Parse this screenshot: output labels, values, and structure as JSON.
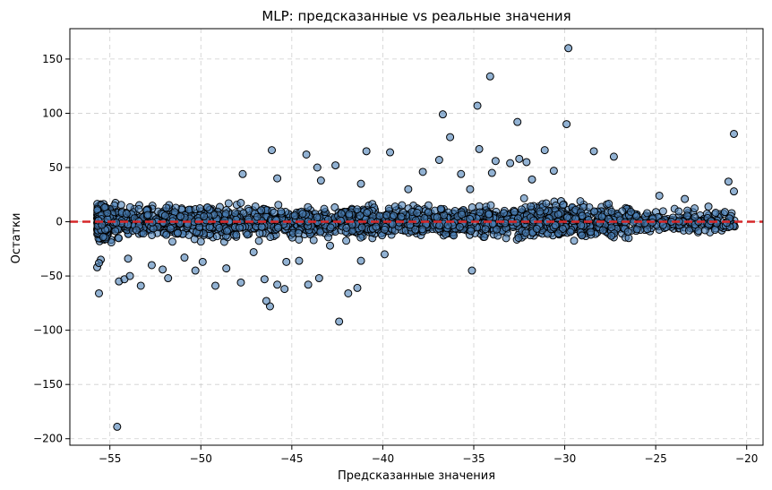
{
  "chart_data": {
    "type": "scatter",
    "title": "MLP: предсказанные vs реальные значения",
    "xlabel": "Предсказанные значения",
    "ylabel": "Остатки",
    "xlim": [
      -57.2,
      -19.1
    ],
    "ylim": [
      -206,
      178
    ],
    "xticks": [
      -55,
      -50,
      -45,
      -40,
      -35,
      -30,
      -25,
      -20
    ],
    "yticks": [
      -200,
      -150,
      -100,
      -50,
      0,
      50,
      100,
      150
    ],
    "xtick_labels": [
      "−55",
      "−50",
      "−45",
      "−40",
      "−35",
      "−30",
      "−25",
      "−20"
    ],
    "ytick_labels": [
      "−200",
      "−150",
      "−100",
      "−50",
      "0",
      "50",
      "100",
      "150"
    ],
    "grid": true,
    "reference_line": {
      "y": 0,
      "color": "#d62728",
      "style": "dashed"
    },
    "colors": {
      "point_fill": "#4a7fb5",
      "point_edge": "#000000"
    },
    "outliers": [
      {
        "x": -29.8,
        "y": 160
      },
      {
        "x": -34.1,
        "y": 134
      },
      {
        "x": -34.8,
        "y": 107
      },
      {
        "x": -36.7,
        "y": 99
      },
      {
        "x": -32.6,
        "y": 92
      },
      {
        "x": -29.9,
        "y": 90
      },
      {
        "x": -20.7,
        "y": 81
      },
      {
        "x": -36.3,
        "y": 78
      },
      {
        "x": -31.1,
        "y": 66
      },
      {
        "x": -34.7,
        "y": 67
      },
      {
        "x": -40.9,
        "y": 65
      },
      {
        "x": -46.1,
        "y": 66
      },
      {
        "x": -28.4,
        "y": 65
      },
      {
        "x": -39.6,
        "y": 64
      },
      {
        "x": -44.2,
        "y": 62
      },
      {
        "x": -27.3,
        "y": 60
      },
      {
        "x": -32.5,
        "y": 58
      },
      {
        "x": -36.9,
        "y": 57
      },
      {
        "x": -33.0,
        "y": 54
      },
      {
        "x": -42.6,
        "y": 52
      },
      {
        "x": -43.6,
        "y": 50
      },
      {
        "x": -37.8,
        "y": 46
      },
      {
        "x": -34.0,
        "y": 45
      },
      {
        "x": -47.7,
        "y": 44
      },
      {
        "x": -35.7,
        "y": 44
      },
      {
        "x": -21.0,
        "y": 37
      },
      {
        "x": -41.2,
        "y": 35
      },
      {
        "x": -43.4,
        "y": 38
      },
      {
        "x": -45.8,
        "y": 40
      },
      {
        "x": -31.8,
        "y": 39
      },
      {
        "x": -33.8,
        "y": 56
      },
      {
        "x": -32.1,
        "y": 55
      },
      {
        "x": -30.6,
        "y": 47
      },
      {
        "x": -35.2,
        "y": 30
      },
      {
        "x": -38.6,
        "y": 30
      },
      {
        "x": -24.8,
        "y": 24
      },
      {
        "x": -23.4,
        "y": 21
      },
      {
        "x": -22.1,
        "y": 14
      },
      {
        "x": -20.7,
        "y": 28
      },
      {
        "x": -21.2,
        "y": 9
      },
      {
        "x": -54.6,
        "y": -189
      },
      {
        "x": -42.4,
        "y": -92
      },
      {
        "x": -46.2,
        "y": -78
      },
      {
        "x": -46.4,
        "y": -73
      },
      {
        "x": -41.9,
        "y": -66
      },
      {
        "x": -55.6,
        "y": -66
      },
      {
        "x": -45.4,
        "y": -62
      },
      {
        "x": -41.4,
        "y": -61
      },
      {
        "x": -45.8,
        "y": -58
      },
      {
        "x": -53.3,
        "y": -59
      },
      {
        "x": -49.2,
        "y": -59
      },
      {
        "x": -44.1,
        "y": -58
      },
      {
        "x": -54.5,
        "y": -55
      },
      {
        "x": -54.2,
        "y": -53
      },
      {
        "x": -47.8,
        "y": -56
      },
      {
        "x": -46.5,
        "y": -53
      },
      {
        "x": -43.5,
        "y": -52
      },
      {
        "x": -53.9,
        "y": -50
      },
      {
        "x": -51.8,
        "y": -52
      },
      {
        "x": -35.1,
        "y": -45
      },
      {
        "x": -50.3,
        "y": -45
      },
      {
        "x": -52.1,
        "y": -44
      },
      {
        "x": -48.6,
        "y": -43
      },
      {
        "x": -55.7,
        "y": -42
      },
      {
        "x": -52.7,
        "y": -40
      },
      {
        "x": -49.9,
        "y": -37
      },
      {
        "x": -45.3,
        "y": -37
      },
      {
        "x": -44.6,
        "y": -36
      },
      {
        "x": -41.2,
        "y": -36
      },
      {
        "x": -39.9,
        "y": -30
      },
      {
        "x": -50.9,
        "y": -33
      },
      {
        "x": -47.1,
        "y": -28
      },
      {
        "x": -42.9,
        "y": -22
      },
      {
        "x": -55.5,
        "y": -35
      },
      {
        "x": -55.6,
        "y": -38
      },
      {
        "x": -54.0,
        "y": -34
      }
    ]
  }
}
